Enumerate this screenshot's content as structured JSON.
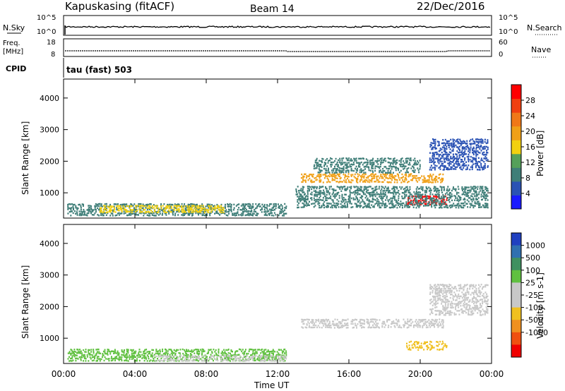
{
  "header": {
    "station": "Kapuskasing (fitACF)",
    "beam": "Beam 14",
    "date": "22/Dec/2016"
  },
  "top_panels": {
    "nsky": {
      "label": "N.Sky",
      "left_ticks": [
        "10^5",
        "10^0"
      ],
      "right_ticks": [
        "10^5",
        "10^0"
      ],
      "right_label": "N.Search"
    },
    "freq": {
      "label_line1": "Freq.",
      "label_line2": "[MHz]",
      "left_ticks": [
        "18",
        "8"
      ],
      "right_ticks": [
        "60",
        "0"
      ],
      "right_label": "Nave"
    },
    "cpid": {
      "label": "CPID",
      "mode": "tau (fast) 503"
    }
  },
  "colors": {
    "power_scale": [
      "#1a1aff",
      "#2a52b4",
      "#3f7e78",
      "#55a05a",
      "#f2d010",
      "#f0a018",
      "#f07818",
      "#f04010",
      "#ff0000"
    ],
    "velocity_scale": [
      "#2040c0",
      "#3070b0",
      "#409060",
      "#60c040",
      "#c8c8c8",
      "#c8c8c8",
      "#f0c020",
      "#f09020",
      "#f05010",
      "#f00000"
    ]
  },
  "chart_data": [
    {
      "type": "heatmap",
      "title": "",
      "ylabel": "Slant Range [km]",
      "xlabel": "",
      "ylim": [
        200,
        4600
      ],
      "yticks": [
        "1000",
        "2000",
        "3000",
        "4000"
      ],
      "x_range_hours": [
        0,
        24
      ],
      "colorbar": {
        "label": "Power [dB]",
        "ticks": [
          "4",
          "8",
          "12",
          "16",
          "20",
          "24",
          "28"
        ],
        "range": [
          0,
          32
        ]
      },
      "regions": [
        {
          "t0": 0.2,
          "t1": 12.5,
          "r0": 250,
          "r1": 650,
          "value": 8
        },
        {
          "t0": 2.0,
          "t1": 9.0,
          "r0": 350,
          "r1": 600,
          "value": 16
        },
        {
          "t0": 13.3,
          "t1": 21.3,
          "r0": 1300,
          "r1": 1600,
          "value": 20
        },
        {
          "t0": 14.0,
          "t1": 20.0,
          "r0": 1600,
          "r1": 2100,
          "value": 10
        },
        {
          "t0": 19.2,
          "t1": 21.5,
          "r0": 600,
          "r1": 900,
          "value": 30
        },
        {
          "t0": 20.5,
          "t1": 23.8,
          "r0": 1700,
          "r1": 2700,
          "value": 6
        },
        {
          "t0": 13.0,
          "t1": 23.8,
          "r0": 500,
          "r1": 1200,
          "value": 10
        }
      ]
    },
    {
      "type": "heatmap",
      "title": "",
      "ylabel": "Slant Range [km]",
      "xlabel": "Time UT",
      "ylim": [
        200,
        4600
      ],
      "yticks": [
        "1000",
        "2000",
        "3000",
        "4000"
      ],
      "xticks": [
        "00:00",
        "04:00",
        "08:00",
        "12:00",
        "16:00",
        "20:00",
        "00:00"
      ],
      "colorbar": {
        "label": "Velocity [m s-1]",
        "ticks": [
          "1000",
          "500",
          "100",
          "25",
          "-25",
          "-100",
          "-500",
          "-1000"
        ]
      },
      "regions": [
        {
          "t0": 0.2,
          "t1": 12.5,
          "r0": 250,
          "r1": 650,
          "value": "100"
        },
        {
          "t0": 5.0,
          "t1": 12.5,
          "r0": 250,
          "r1": 450,
          "value": "-25"
        },
        {
          "t0": 13.3,
          "t1": 21.3,
          "r0": 1300,
          "r1": 1600,
          "value": "-25"
        },
        {
          "t0": 19.2,
          "t1": 21.5,
          "r0": 600,
          "r1": 900,
          "value": "-100"
        },
        {
          "t0": 20.5,
          "t1": 23.8,
          "r0": 1700,
          "r1": 2700,
          "value": "-25"
        }
      ]
    }
  ]
}
